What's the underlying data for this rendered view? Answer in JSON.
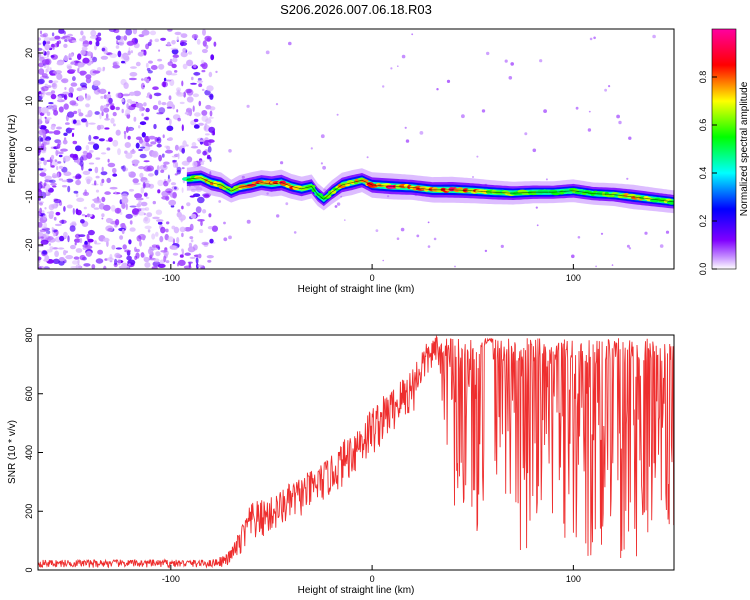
{
  "title": "S206.2026.007.06.18.R03",
  "chart_data": [
    {
      "type": "heatmap",
      "name": "spectrogram",
      "xlabel": "Height of straight line (km)",
      "ylabel": "Frequency (Hz)",
      "xlim": [
        -166,
        150
      ],
      "ylim": [
        -25,
        25
      ],
      "xticks": [
        -100,
        0,
        100
      ],
      "xtick_labels": [
        "-100",
        "0",
        "100"
      ],
      "yticks": [
        -20,
        -10,
        0,
        10,
        20
      ],
      "ytick_labels": [
        "-20",
        "-10",
        "0",
        "10",
        "20"
      ],
      "colorbar": {
        "label": "Normalized spectral amplitude",
        "range": [
          0,
          1
        ],
        "ticks": [
          0.0,
          0.2,
          0.4,
          0.6,
          0.8
        ],
        "tick_labels": [
          "0.0",
          "0.2",
          "0.4",
          "0.6",
          "0.8"
        ],
        "colors": [
          "#ffffff",
          "#c58fff",
          "#8000ff",
          "#0000ff",
          "#00ffff",
          "#00ff00",
          "#ffff00",
          "#ff0000",
          "#ff00a0"
        ]
      },
      "ridge": {
        "x": [
          -92,
          -85,
          -80,
          -75,
          -70,
          -66,
          -60,
          -55,
          -50,
          -45,
          -40,
          -35,
          -30,
          -27,
          -24,
          -20,
          -15,
          -10,
          -5,
          0,
          10,
          20,
          30,
          40,
          50,
          60,
          70,
          80,
          90,
          100,
          110,
          120,
          130,
          140,
          150
        ],
        "y": [
          -6.3,
          -6.0,
          -7.0,
          -7.5,
          -8.8,
          -8.0,
          -7.5,
          -7.0,
          -7.3,
          -7.0,
          -7.8,
          -8.3,
          -7.8,
          -9.5,
          -10.5,
          -9.0,
          -7.5,
          -7.0,
          -6.5,
          -7.5,
          -7.8,
          -8.0,
          -8.5,
          -8.5,
          -8.7,
          -9.0,
          -9.2,
          -9.0,
          -9.0,
          -8.7,
          -9.3,
          -9.5,
          -10.0,
          -10.5,
          -11.0
        ],
        "amplitude": [
          0.6,
          0.75,
          0.85,
          0.8,
          0.6,
          0.75,
          0.85,
          0.8,
          0.85,
          0.9,
          0.8,
          0.75,
          0.7,
          0.6,
          0.55,
          0.7,
          0.75,
          0.8,
          0.7,
          0.85,
          0.9,
          0.8,
          0.85,
          0.9,
          0.8,
          0.7,
          0.6,
          0.55,
          0.5,
          0.6,
          0.55,
          0.6,
          0.75,
          0.65,
          0.6
        ]
      },
      "noise_region_x": [
        -166,
        -78
      ]
    },
    {
      "type": "line",
      "name": "snr",
      "xlabel": "Height of straight line (km)",
      "ylabel": "SNR (10 * v/v)",
      "xlim": [
        -166,
        150
      ],
      "ylim": [
        0,
        800
      ],
      "xticks": [
        -100,
        0,
        100
      ],
      "xtick_labels": [
        "-100",
        "0",
        "100"
      ],
      "yticks": [
        0,
        200,
        400,
        600,
        800
      ],
      "ytick_labels": [
        "0",
        "200",
        "400",
        "600",
        "800"
      ],
      "color": "#ee2e2e",
      "envelope": {
        "x": [
          -166,
          -80,
          -72,
          -68,
          -60,
          -50,
          -40,
          -30,
          -20,
          -10,
          0,
          10,
          20,
          25,
          30,
          33,
          40,
          55,
          57,
          62,
          150
        ],
        "low": [
          8,
          8,
          12,
          30,
          80,
          120,
          160,
          200,
          250,
          310,
          380,
          460,
          520,
          620,
          680,
          700,
          180,
          120,
          700,
          60,
          30
        ],
        "high": [
          35,
          35,
          55,
          100,
          230,
          250,
          300,
          340,
          390,
          480,
          560,
          620,
          700,
          760,
          790,
          800,
          790,
          790,
          790,
          790,
          790
        ]
      }
    }
  ]
}
